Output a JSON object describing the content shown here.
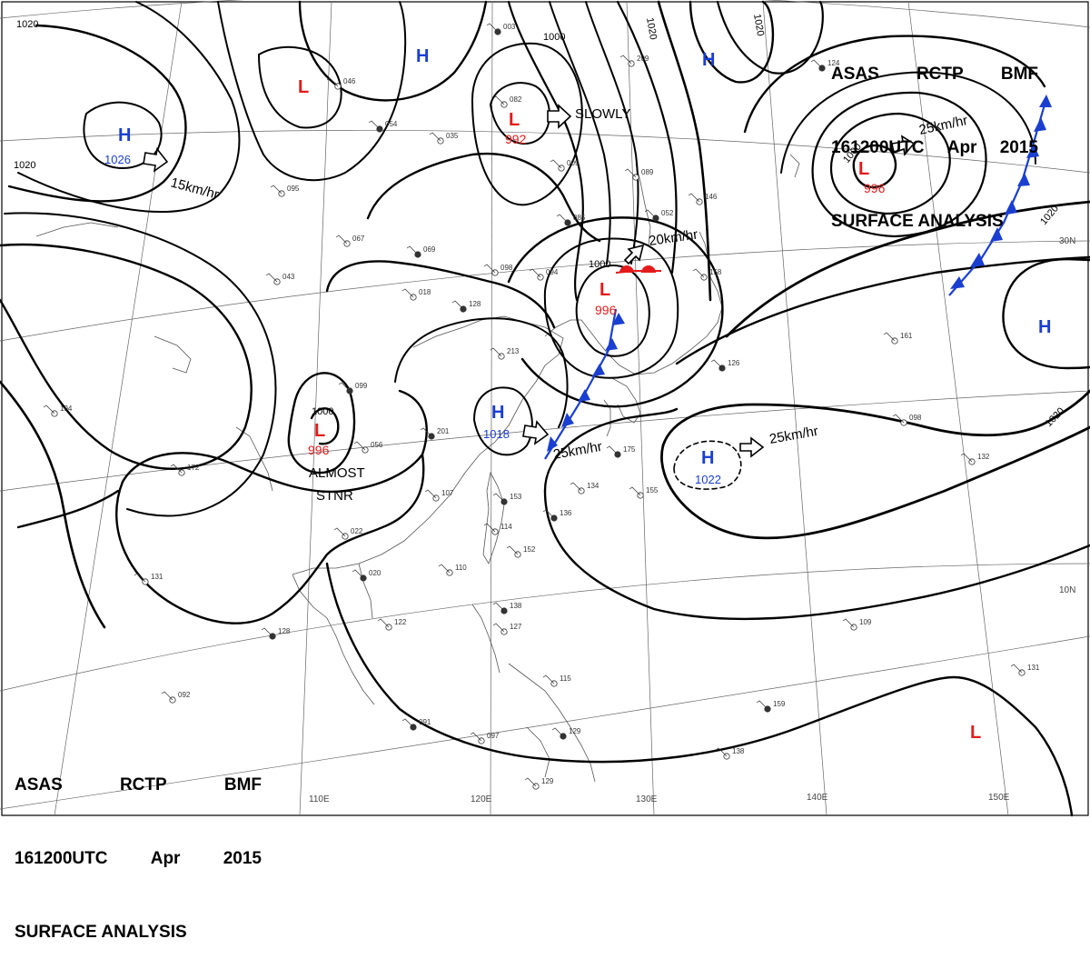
{
  "header": {
    "agency": "ASAS",
    "station": "RCTP",
    "service": "BMF",
    "time": "161200UTC",
    "month": "Apr",
    "year": "2015",
    "title": "SURFACE ANALYSIS"
  },
  "colors": {
    "high": "#1a3fd0",
    "low": "#e31b1b",
    "front_cold": "#1a3fd0",
    "front_warm": "#e31b1b",
    "isobar": "#000000",
    "grid": "#555555",
    "coast": "#555555"
  },
  "isobar_labels": [
    "1020",
    "1020",
    "1000",
    "1020",
    "1020",
    "1000",
    "1000",
    "1000",
    "1020",
    "1020",
    "1000"
  ],
  "pressure_centers": [
    {
      "type": "H",
      "value": "1026"
    },
    {
      "type": "H",
      "value": ""
    },
    {
      "type": "H",
      "value": ""
    },
    {
      "type": "L",
      "value": "992"
    },
    {
      "type": "L",
      "value": "996"
    },
    {
      "type": "L",
      "value": "996"
    },
    {
      "type": "L",
      "value": "996"
    },
    {
      "type": "H",
      "value": "1018"
    },
    {
      "type": "H",
      "value": "1022"
    },
    {
      "type": "H",
      "value": ""
    },
    {
      "type": "L",
      "value": ""
    },
    {
      "type": "L",
      "value": ""
    }
  ],
  "movements": [
    "SLOWLY",
    "15km/hr",
    "25km/hr",
    "20km/hr",
    "25km/hr",
    "25km/hr"
  ],
  "annotations": [
    "ALMOST",
    "STNR"
  ],
  "longitude_labels": [
    "110E",
    "120E",
    "130E",
    "140E",
    "150E"
  ],
  "latitude_labels": [
    "30N",
    "10N"
  ],
  "station_numbers": [
    "003",
    "046",
    "035",
    "054",
    "095",
    "067",
    "069",
    "043",
    "018",
    "128",
    "098",
    "094",
    "085",
    "009",
    "089",
    "052",
    "146",
    "158",
    "126",
    "161",
    "098",
    "201",
    "213",
    "107",
    "153",
    "114",
    "152",
    "136",
    "134",
    "155",
    "175",
    "194",
    "172",
    "099",
    "056",
    "022",
    "020",
    "110",
    "122",
    "128",
    "131",
    "092",
    "091",
    "097",
    "129",
    "129",
    "115",
    "127",
    "138",
    "109",
    "131",
    "159",
    "138",
    "132",
    "124",
    "209",
    "082",
    "063",
    "027"
  ]
}
